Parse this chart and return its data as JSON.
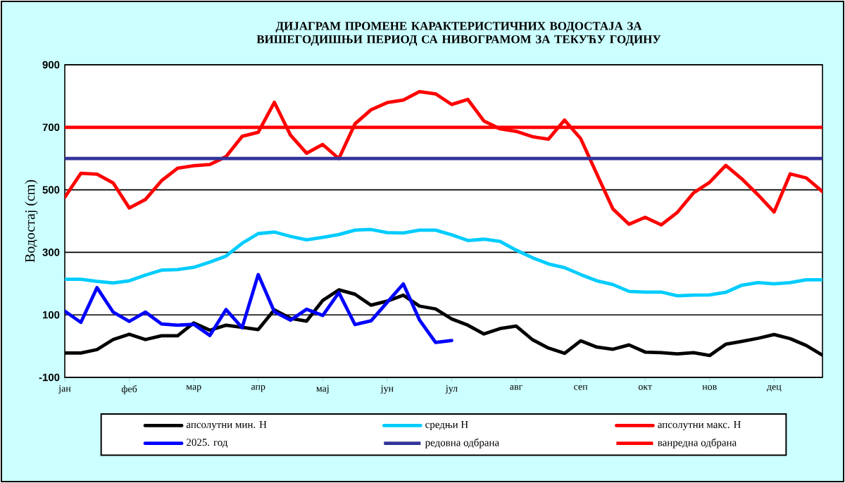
{
  "chart_data": {
    "type": "line",
    "title": "ДИЈАГРАМ ПРОМЕНЕ КАРАКТЕРИСТИЧНИХ ВОДОСТАЈА ЗА ВИШЕГОДИШЊИ ПЕРИОД СА НИВОГРАМОМ ЗА ТЕКУЋУ ГОДИНУ",
    "ylabel": "Водостај (cm)",
    "categories": [
      "јан",
      null,
      null,
      null,
      "феб",
      null,
      null,
      null,
      "мар",
      null,
      null,
      null,
      "апр",
      null,
      null,
      null,
      "мај",
      null,
      null,
      null,
      "јун",
      null,
      null,
      null,
      "јул",
      null,
      null,
      null,
      "авг",
      null,
      null,
      null,
      "сеп",
      null,
      null,
      null,
      "окт",
      null,
      null,
      null,
      "нов",
      null,
      null,
      null,
      "дец",
      null,
      null,
      null
    ],
    "ylim": [
      -100,
      900
    ],
    "yticks": [
      -100,
      100,
      300,
      500,
      700,
      900
    ],
    "grid": "y",
    "legend": "bottom",
    "line_style": "solid",
    "series": [
      {
        "name": "апсолутни мин. Н",
        "color": "#000000",
        "values": [
          -22,
          -22,
          -11,
          21,
          38,
          21,
          33,
          33,
          74,
          51,
          67,
          60,
          53,
          116,
          89,
          80,
          146,
          180,
          166,
          131,
          144,
          163,
          128,
          119,
          87,
          67,
          39,
          56,
          64,
          21,
          -6,
          -23,
          17,
          -3,
          -10,
          4,
          -19,
          -21,
          -25,
          -21,
          -30,
          6,
          15,
          25,
          37,
          24,
          2,
          -29
        ]
      },
      {
        "name": "средњи Н",
        "color": "#00ccff",
        "values": [
          214,
          214,
          207,
          202,
          209,
          227,
          243,
          245,
          252,
          269,
          288,
          329,
          360,
          365,
          351,
          340,
          348,
          357,
          371,
          373,
          363,
          362,
          371,
          371,
          356,
          338,
          342,
          335,
          307,
          283,
          263,
          251,
          229,
          209,
          197,
          175,
          173,
          173,
          161,
          163,
          164,
          172,
          195,
          203,
          199,
          203,
          212,
          212
        ]
      },
      {
        "name": "апсолутни макс. Н",
        "color": "#ff0000",
        "values": [
          476,
          553,
          550,
          522,
          442,
          469,
          529,
          569,
          577,
          581,
          606,
          671,
          684,
          780,
          675,
          617,
          645,
          600,
          711,
          756,
          779,
          787,
          814,
          807,
          773,
          789,
          720,
          695,
          687,
          670,
          662,
          723,
          664,
          551,
          439,
          390,
          412,
          388,
          428,
          490,
          524,
          578,
          535,
          484,
          429,
          551,
          538,
          494
        ]
      },
      {
        "name": "2025. год",
        "color": "#0000ff",
        "values": [
          112,
          76,
          187,
          109,
          79,
          109,
          71,
          67,
          70,
          34,
          117,
          59,
          229,
          110,
          83,
          118,
          98,
          171,
          69,
          81,
          140,
          199,
          84,
          12,
          18,
          null,
          null,
          null,
          null,
          null,
          null,
          null,
          null,
          null,
          null,
          null,
          null,
          null,
          null,
          null,
          null,
          null,
          null,
          null,
          null,
          null,
          null,
          null
        ]
      }
    ],
    "ref_lines": [
      {
        "axis": "y",
        "value": 600,
        "label": "редовна одбрана",
        "color": "#333399"
      },
      {
        "axis": "y",
        "value": 700,
        "label": "ванредна одбрана",
        "color": "#ff0000"
      }
    ]
  }
}
